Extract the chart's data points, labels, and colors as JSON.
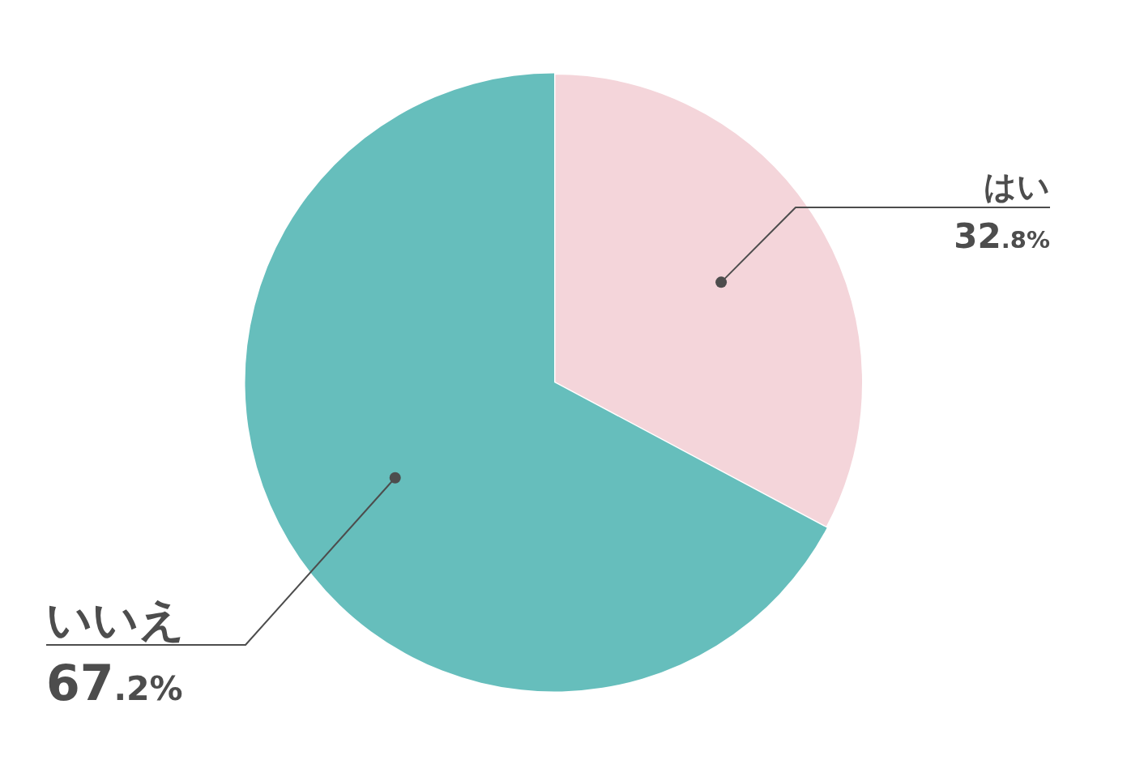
{
  "chart_data": {
    "type": "pie",
    "categories": [
      "はい",
      "いいえ"
    ],
    "values": [
      32.8,
      67.2
    ],
    "colors": [
      "#f4d5da",
      "#66bebc"
    ],
    "value_labels": [
      "32.8%",
      "67.2%"
    ],
    "legend": false
  }
}
